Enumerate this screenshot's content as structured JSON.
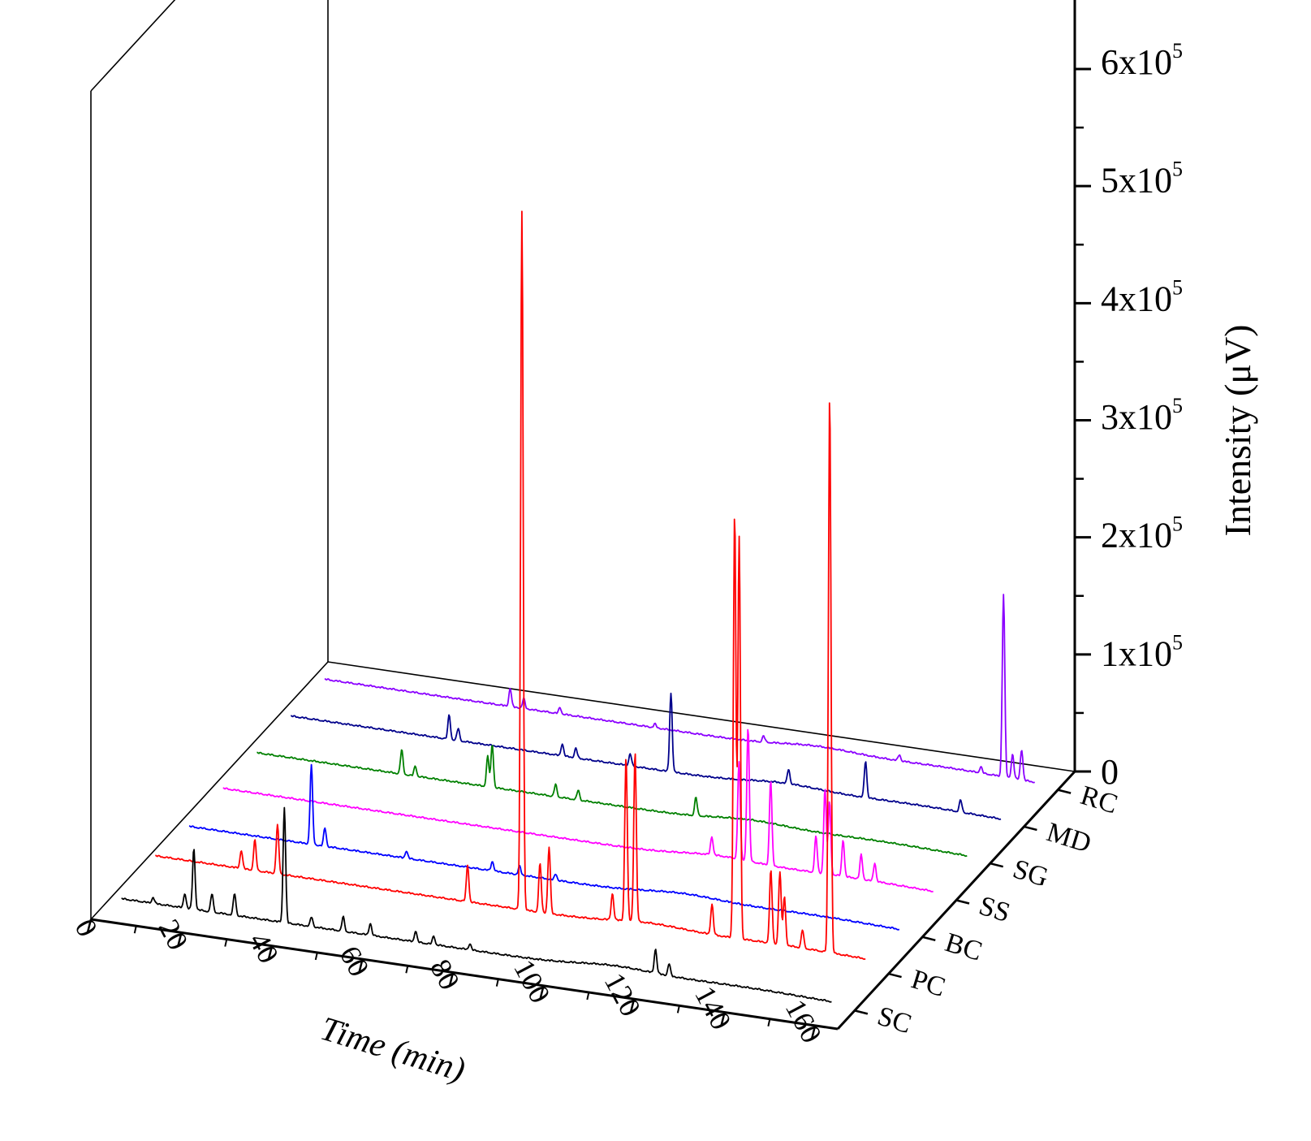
{
  "chart_data": {
    "type": "line",
    "projection": "3d-waterfall",
    "xlabel": "Time (min)",
    "ylabel": "Intensity (μV)",
    "xlim": [
      0,
      165
    ],
    "ylim": [
      0,
      600000
    ],
    "x_ticks": [
      "0",
      "20",
      "40",
      "60",
      "80",
      "100",
      "120",
      "140",
      "160"
    ],
    "x_tick_values": [
      0,
      20,
      40,
      60,
      80,
      100,
      120,
      140,
      160
    ],
    "y_ticks": [
      "0",
      "1x10",
      "2x10",
      "3x10",
      "4x10",
      "5x10",
      "6x10"
    ],
    "y_tick_exponent": "5",
    "y_tick_values": [
      0,
      100000,
      200000,
      300000,
      400000,
      500000,
      600000
    ],
    "series": [
      {
        "name": "SC",
        "color": "#000000",
        "baseline": 3000,
        "peaks": [
          [
            10,
            5000
          ],
          [
            17,
            12000
          ],
          [
            19,
            50000
          ],
          [
            23,
            15000
          ],
          [
            28,
            18000
          ],
          [
            39,
            95000
          ],
          [
            45,
            8000
          ],
          [
            52,
            12000
          ],
          [
            58,
            10000
          ],
          [
            68,
            9000
          ],
          [
            72,
            7000
          ],
          [
            80,
            5000
          ],
          [
            121,
            20000
          ],
          [
            124,
            10000
          ]
        ]
      },
      {
        "name": "PC",
        "color": "#ff0000",
        "baseline": 8000,
        "peaks": [
          [
            22,
            15000
          ],
          [
            25,
            25000
          ],
          [
            30,
            40000
          ],
          [
            72,
            30000
          ],
          [
            84,
            575000
          ],
          [
            88,
            40000
          ],
          [
            90,
            55000
          ],
          [
            104,
            22000
          ],
          [
            107,
            135000
          ],
          [
            109,
            140000
          ],
          [
            126,
            25000
          ],
          [
            131,
            350000
          ],
          [
            132,
            330000
          ],
          [
            139,
            60000
          ],
          [
            141,
            60000
          ],
          [
            142,
            40000
          ],
          [
            146,
            15000
          ],
          [
            152,
            460000
          ]
        ]
      },
      {
        "name": "BC",
        "color": "#0000ff",
        "baseline": 2000,
        "peaks": [
          [
            30,
            65000
          ],
          [
            33,
            15000
          ],
          [
            51,
            6000
          ],
          [
            70,
            8000
          ],
          [
            76,
            7000
          ],
          [
            84,
            5000
          ]
        ]
      },
      {
        "name": "SS",
        "color": "#ff00ff",
        "baseline": 3000,
        "peaks": [
          [
            111,
            15000
          ],
          [
            117,
            80000
          ],
          [
            119,
            110000
          ],
          [
            124,
            70000
          ],
          [
            134,
            30000
          ],
          [
            136,
            70000
          ],
          [
            137,
            60000
          ],
          [
            140,
            30000
          ],
          [
            144,
            20000
          ],
          [
            147,
            15000
          ]
        ]
      },
      {
        "name": "SG",
        "color": "#008000",
        "baseline": 2000,
        "peaks": [
          [
            35,
            20000
          ],
          [
            38,
            8000
          ],
          [
            54,
            25000
          ],
          [
            55,
            35000
          ],
          [
            69,
            10000
          ],
          [
            74,
            8000
          ],
          [
            100,
            15000
          ]
        ]
      },
      {
        "name": "MD",
        "color": "#00008b",
        "baseline": 2000,
        "peaks": [
          [
            38,
            20000
          ],
          [
            40,
            10000
          ],
          [
            63,
            10000
          ],
          [
            66,
            8000
          ],
          [
            78,
            10000
          ],
          [
            87,
            65000
          ],
          [
            113,
            12000
          ],
          [
            130,
            30000
          ],
          [
            151,
            10000
          ]
        ]
      },
      {
        "name": "RC",
        "color": "#8b00ff",
        "baseline": 2000,
        "peaks": [
          [
            44,
            15000
          ],
          [
            47,
            8000
          ],
          [
            55,
            5000
          ],
          [
            76,
            3000
          ],
          [
            100,
            5000
          ],
          [
            130,
            5000
          ],
          [
            148,
            5000
          ],
          [
            153,
            150000
          ],
          [
            155,
            20000
          ],
          [
            157,
            25000
          ]
        ]
      }
    ]
  }
}
